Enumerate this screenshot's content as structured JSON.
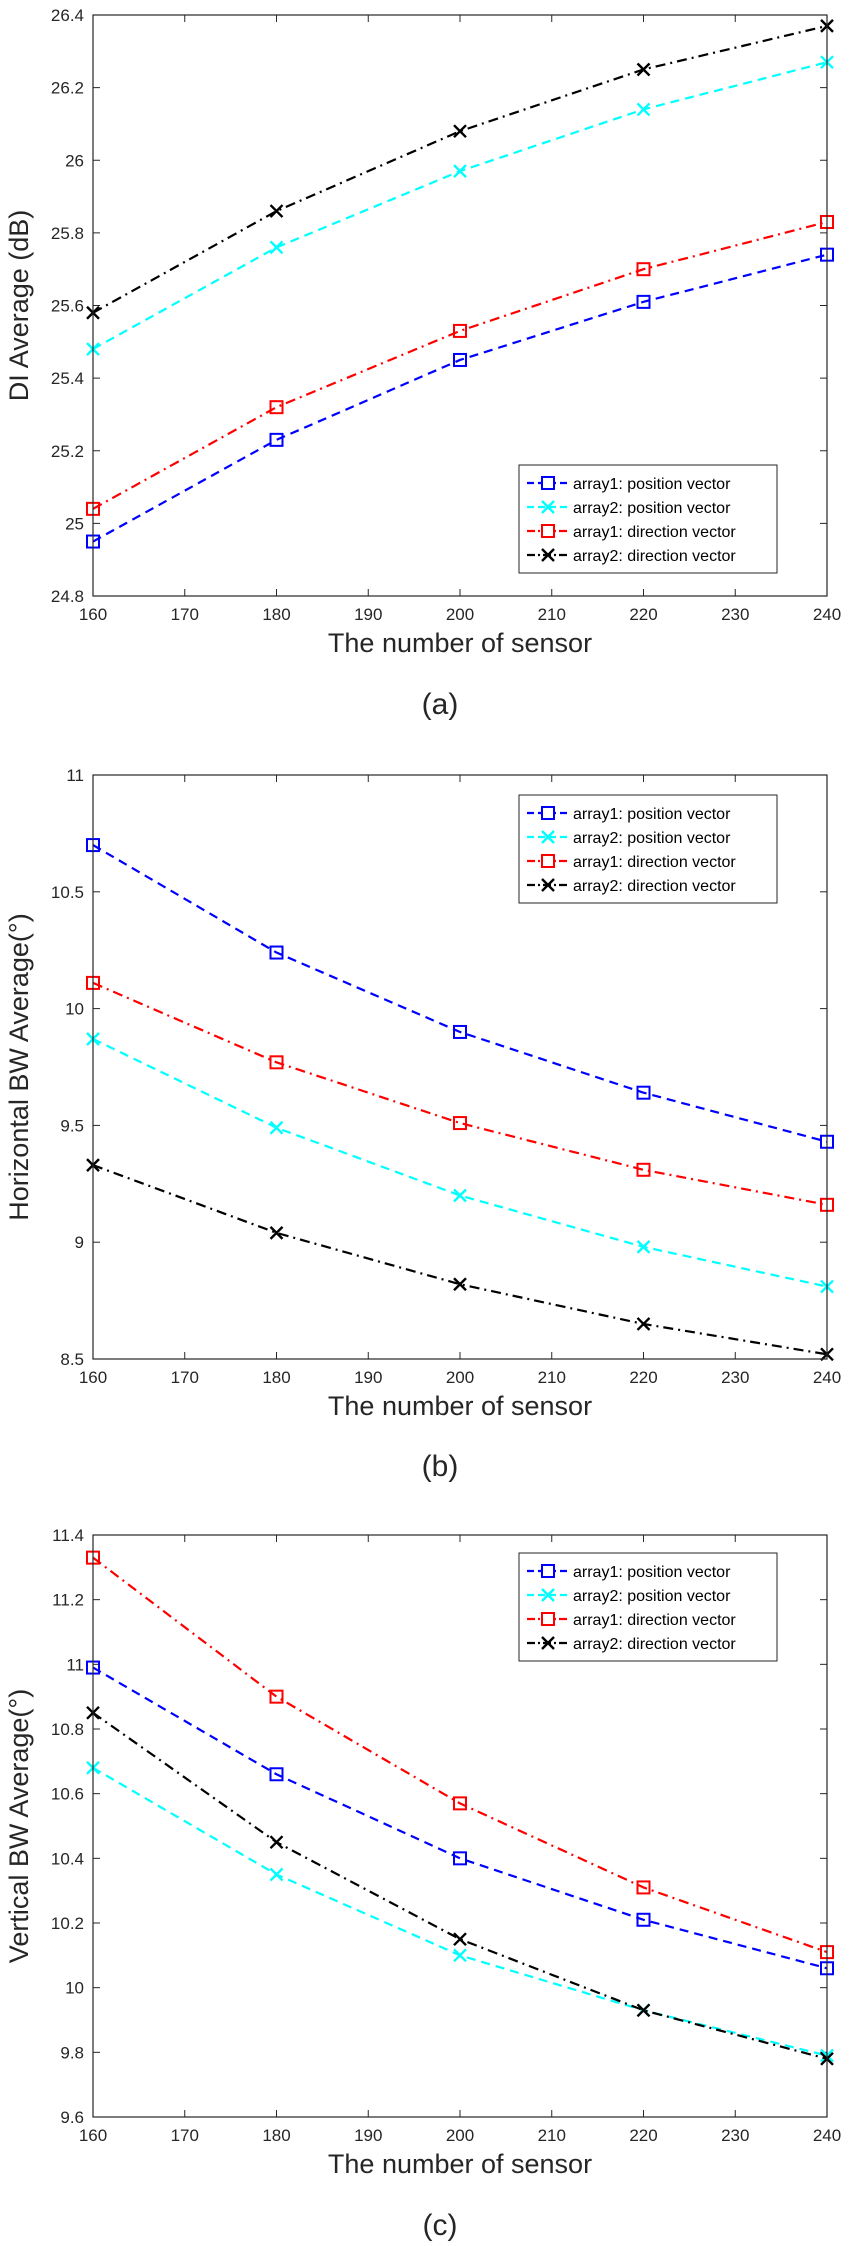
{
  "chart_data": [
    {
      "type": "line",
      "caption": "(a)",
      "xlabel": "The number of sensor",
      "ylabel": "DI Average (dB)",
      "x": [
        160,
        180,
        200,
        220,
        240
      ],
      "xlim": [
        160,
        240
      ],
      "xticks": [
        160,
        170,
        180,
        190,
        200,
        210,
        220,
        230,
        240
      ],
      "ylim": [
        24.8,
        26.4
      ],
      "yticks": [
        24.8,
        25,
        25.2,
        25.4,
        25.6,
        25.8,
        26,
        26.2,
        26.4
      ],
      "ytick_labels": [
        "24.8",
        "25",
        "25.2",
        "25.4",
        "25.6",
        "25.8",
        "26",
        "26.2",
        "26.4"
      ],
      "legend_position": "bottom-right",
      "series": [
        {
          "name": "array1: position vector",
          "color": "#0000ff",
          "marker": "square",
          "dash": "dashed",
          "values": [
            24.95,
            25.23,
            25.45,
            25.61,
            25.74
          ]
        },
        {
          "name": "array2: position vector",
          "color": "#00ffff",
          "marker": "x",
          "dash": "dashed",
          "values": [
            25.48,
            25.76,
            25.97,
            26.14,
            26.27
          ]
        },
        {
          "name": "array1: direction vector",
          "color": "#ff0000",
          "marker": "square",
          "dash": "dashdot",
          "values": [
            25.04,
            25.32,
            25.53,
            25.7,
            25.83
          ]
        },
        {
          "name": "array2: direction vector",
          "color": "#000000",
          "marker": "x",
          "dash": "dashdot",
          "values": [
            25.58,
            25.86,
            26.08,
            26.25,
            26.37
          ]
        }
      ]
    },
    {
      "type": "line",
      "caption": "(b)",
      "xlabel": "The number of sensor",
      "ylabel": "Horizontal BW Average(°)",
      "x": [
        160,
        180,
        200,
        220,
        240
      ],
      "xlim": [
        160,
        240
      ],
      "xticks": [
        160,
        170,
        180,
        190,
        200,
        210,
        220,
        230,
        240
      ],
      "ylim": [
        8.5,
        11
      ],
      "yticks": [
        8.5,
        9,
        9.5,
        10,
        10.5,
        11
      ],
      "ytick_labels": [
        "8.5",
        "9",
        "9.5",
        "10",
        "10.5",
        "11"
      ],
      "legend_position": "top-right",
      "series": [
        {
          "name": "array1: position vector",
          "color": "#0000ff",
          "marker": "square",
          "dash": "dashed",
          "values": [
            10.7,
            10.24,
            9.9,
            9.64,
            9.43
          ]
        },
        {
          "name": "array2: position vector",
          "color": "#00ffff",
          "marker": "x",
          "dash": "dashed",
          "values": [
            9.87,
            9.49,
            9.2,
            8.98,
            8.81
          ]
        },
        {
          "name": "array1: direction vector",
          "color": "#ff0000",
          "marker": "square",
          "dash": "dashdot",
          "values": [
            10.11,
            9.77,
            9.51,
            9.31,
            9.16
          ]
        },
        {
          "name": "array2: direction vector",
          "color": "#000000",
          "marker": "x",
          "dash": "dashdot",
          "values": [
            9.33,
            9.04,
            8.82,
            8.65,
            8.52
          ]
        }
      ]
    },
    {
      "type": "line",
      "caption": "(c)",
      "xlabel": "The number of sensor",
      "ylabel": "Vertical BW Average(°)",
      "x": [
        160,
        180,
        200,
        220,
        240
      ],
      "xlim": [
        160,
        240
      ],
      "xticks": [
        160,
        170,
        180,
        190,
        200,
        210,
        220,
        230,
        240
      ],
      "ylim": [
        9.6,
        11.4
      ],
      "yticks": [
        9.6,
        9.8,
        10,
        10.2,
        10.4,
        10.6,
        10.8,
        11,
        11.2,
        11.4
      ],
      "ytick_labels": [
        "9.6",
        "9.8",
        "10",
        "10.2",
        "10.4",
        "10.6",
        "10.8",
        "11",
        "11.2",
        "11.4"
      ],
      "legend_position": "top-right",
      "series": [
        {
          "name": "array1: position vector",
          "color": "#0000ff",
          "marker": "square",
          "dash": "dashed",
          "values": [
            10.99,
            10.66,
            10.4,
            10.21,
            10.06
          ]
        },
        {
          "name": "array2: position vector",
          "color": "#00ffff",
          "marker": "x",
          "dash": "dashed",
          "values": [
            10.68,
            10.35,
            10.1,
            9.93,
            9.79
          ]
        },
        {
          "name": "array1: direction vector",
          "color": "#ff0000",
          "marker": "square",
          "dash": "dashdot",
          "values": [
            11.33,
            10.9,
            10.57,
            10.31,
            10.11
          ]
        },
        {
          "name": "array2: direction vector",
          "color": "#000000",
          "marker": "x",
          "dash": "dashdot",
          "values": [
            10.85,
            10.45,
            10.15,
            9.93,
            9.78
          ]
        }
      ]
    }
  ]
}
